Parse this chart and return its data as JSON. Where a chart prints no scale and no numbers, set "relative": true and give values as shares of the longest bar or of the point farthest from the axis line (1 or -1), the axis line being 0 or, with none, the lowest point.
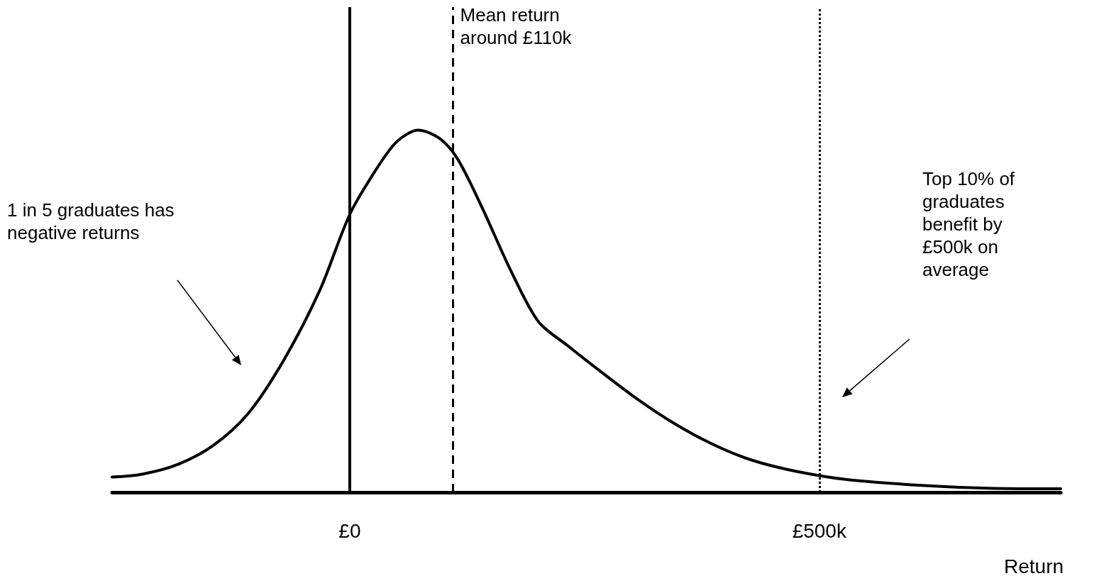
{
  "chart_data": {
    "type": "line",
    "relative": true,
    "xlabel": "Return",
    "color": "#000000",
    "marker": "none",
    "line_style": "solid",
    "grid": false,
    "xlim": [
      -253,
      757
    ],
    "xticks": [
      {
        "value": 0,
        "label": "£0"
      },
      {
        "value": 500,
        "label": "£500k"
      }
    ],
    "x": [
      -253,
      -221,
      -184,
      -146,
      -108,
      -70,
      -32,
      0,
      28,
      50,
      73,
      96,
      115,
      141,
      171,
      201,
      232,
      270,
      307,
      345,
      383,
      421,
      459,
      500,
      534,
      609,
      685,
      757
    ],
    "values": [
      0.042,
      0.05,
      0.076,
      0.128,
      0.218,
      0.366,
      0.557,
      0.767,
      0.891,
      0.968,
      1.0,
      0.977,
      0.92,
      0.786,
      0.615,
      0.471,
      0.405,
      0.328,
      0.256,
      0.191,
      0.137,
      0.095,
      0.067,
      0.046,
      0.034,
      0.019,
      0.011,
      0.01
    ],
    "ref_lines": [
      {
        "axis": "x",
        "value": 0,
        "label": null,
        "line_style": "solid"
      },
      {
        "axis": "x",
        "value": 110,
        "label": "Mean return around £110k",
        "line_style": "dashed"
      },
      {
        "axis": "x",
        "value": 500,
        "label": null,
        "line_style": "dotted"
      }
    ],
    "annotations": [
      "1 in 5 graduates has negative returns",
      "Top 10% of graduates benefit by £500k on average"
    ]
  }
}
